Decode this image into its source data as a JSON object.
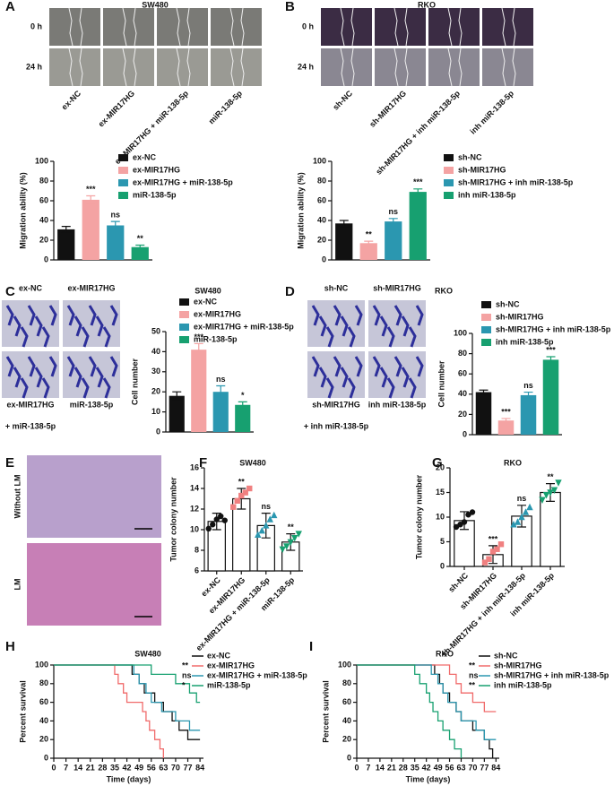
{
  "panel_letters": [
    "A",
    "B",
    "C",
    "D",
    "E",
    "F",
    "G",
    "H",
    "I"
  ],
  "images": {
    "A": {
      "title": "SW480",
      "rows": [
        "0 h",
        "24 h"
      ],
      "columns": [
        "ex-NC",
        "ex-MIR17HG",
        "ex-MIR17HG + miR-138-5p",
        "miR-138-5p"
      ]
    },
    "B": {
      "title": "RKO",
      "rows": [
        "0 h",
        "24 h"
      ],
      "columns": [
        "sh-NC",
        "sh-MIR17HG",
        "sh-MIR17HG + inh miR-138-5p",
        "inh miR-138-5p"
      ]
    },
    "C": {
      "labels": [
        [
          "ex-NC"
        ],
        [
          "ex-MIR17HG"
        ],
        [
          "ex-MIR17HG",
          "+ miR-138-5p"
        ],
        [
          "miR-138-5p"
        ]
      ]
    },
    "D": {
      "labels": [
        [
          "sh-NC"
        ],
        [
          "sh-MIR17HG"
        ],
        [
          "sh-MIR17HG",
          "+ inh miR-138-5p"
        ],
        [
          "inh miR-138-5p"
        ]
      ]
    },
    "E": {
      "rows": [
        "Without LM",
        "LM"
      ]
    }
  },
  "chart_data": [
    {
      "type": "bar",
      "y_label": "Migration ability (%)",
      "categories": [
        "ex-NC",
        "ex-MIR17HG",
        "ex-MIR17HG + miR-138-5p",
        "miR-138-5p"
      ],
      "colors": [
        "#111111",
        "#f4a3a3",
        "#2b97b0",
        "#17a070"
      ],
      "values": [
        31,
        61,
        35,
        13
      ],
      "errors": [
        3,
        4,
        4,
        2
      ],
      "significance": [
        null,
        "***",
        "ns",
        "**"
      ],
      "ylim": [
        0,
        100
      ],
      "yticks": [
        0,
        20,
        40,
        60,
        80,
        100
      ]
    },
    {
      "type": "bar",
      "y_label": "Migration ability (%)",
      "categories": [
        "sh-NC",
        "sh-MIR17HG",
        "sh-MIR17HG + inh miR-138-5p",
        "inh miR-138-5p"
      ],
      "colors": [
        "#111111",
        "#f4a3a3",
        "#2b97b0",
        "#17a070"
      ],
      "values": [
        37,
        17,
        39,
        69
      ],
      "errors": [
        3,
        2,
        3,
        3
      ],
      "significance": [
        null,
        "**",
        "ns",
        "***"
      ],
      "ylim": [
        0,
        100
      ],
      "yticks": [
        0,
        20,
        40,
        60,
        80,
        100
      ]
    },
    {
      "type": "bar",
      "title": "SW480",
      "y_label": "Cell number",
      "categories": [
        "ex-NC",
        "ex-MIR17HG",
        "ex-MIR17HG + miR-138-5p",
        "miR-138-5p"
      ],
      "colors": [
        "#111111",
        "#f4a3a3",
        "#2b97b0",
        "#17a070"
      ],
      "values": [
        18,
        41,
        20,
        13.5
      ],
      "errors": [
        2,
        3,
        3,
        1.5
      ],
      "significance": [
        null,
        "***",
        "ns",
        "*"
      ],
      "ylim": [
        0,
        50
      ],
      "yticks": [
        0,
        10,
        20,
        30,
        40,
        50
      ]
    },
    {
      "type": "bar",
      "title": "RKO",
      "y_label": "Cell number",
      "categories": [
        "sh-NC",
        "sh-MIR17HG",
        "sh-MIR17HG + inh miR-138-5p",
        "inh miR-138-5p"
      ],
      "colors": [
        "#111111",
        "#f4a3a3",
        "#2b97b0",
        "#17a070"
      ],
      "values": [
        42,
        14,
        39,
        74
      ],
      "errors": [
        2,
        2,
        3,
        3
      ],
      "significance": [
        null,
        "***",
        "ns",
        "***"
      ],
      "ylim": [
        0,
        100
      ],
      "yticks": [
        0,
        20,
        40,
        60,
        80,
        100
      ]
    },
    {
      "type": "dotbar",
      "title": "SW480",
      "y_label": "Tumor colony number",
      "categories": [
        "ex-NC",
        "ex-MIR17HG",
        "ex-MIR17HG + miR-138-5p",
        "miR-138-5p"
      ],
      "colors": [
        "#111111",
        "#f08080",
        "#2b97b0",
        "#17a070"
      ],
      "markers": [
        "circle",
        "square",
        "triangle-up",
        "triangle-down"
      ],
      "values": [
        10.8,
        13.0,
        10.4,
        8.8
      ],
      "errors": [
        0.8,
        1.0,
        1.2,
        0.8
      ],
      "significance": [
        null,
        "**",
        "ns",
        "**"
      ],
      "points": [
        [
          10.1,
          10.5,
          11.0,
          11.3,
          10.9
        ],
        [
          12.2,
          12.8,
          13.3,
          13.6,
          14.0
        ],
        [
          9.5,
          9.9,
          10.4,
          11.0,
          11.4
        ],
        [
          8.1,
          8.4,
          8.8,
          9.2,
          9.6
        ]
      ],
      "ylim": [
        6,
        16
      ],
      "yticks": [
        6,
        8,
        10,
        12,
        14,
        16
      ]
    },
    {
      "type": "dotbar",
      "title": "RKO",
      "y_label": "Tumor colony number",
      "categories": [
        "sh-NC",
        "sh-MIR17HG",
        "sh-MIR17HG + inh miR-138-5p",
        "inh miR-138-5p"
      ],
      "colors": [
        "#111111",
        "#f08080",
        "#2b97b0",
        "#17a070"
      ],
      "markers": [
        "circle",
        "square",
        "triangle-up",
        "triangle-down"
      ],
      "values": [
        9.3,
        2.4,
        10.2,
        15.0
      ],
      "errors": [
        1.8,
        1.8,
        2.2,
        1.8
      ],
      "significance": [
        null,
        "***",
        "ns",
        "**"
      ],
      "points": [
        [
          8.0,
          8.5,
          9.0,
          10.5,
          11.0
        ],
        [
          0.8,
          1.5,
          3.0,
          3.5,
          4.5
        ],
        [
          8.5,
          9.0,
          10.0,
          11.0,
          12.0
        ],
        [
          13.5,
          14.5,
          15.0,
          15.5,
          17.0
        ]
      ],
      "ylim": [
        0,
        20
      ],
      "yticks": [
        0,
        5,
        10,
        15,
        20
      ]
    },
    {
      "type": "survival",
      "title": "SW480",
      "x_label": "Time (days)",
      "y_label": "Percent survival",
      "xlim": [
        0,
        86
      ],
      "xticks": [
        0,
        7,
        14,
        21,
        28,
        35,
        42,
        49,
        56,
        63,
        70,
        77,
        84
      ],
      "ylim": [
        0,
        100
      ],
      "yticks": [
        0,
        20,
        40,
        60,
        80,
        100
      ],
      "series": [
        {
          "name": "ex-NC",
          "color": "#111111",
          "significance": null,
          "x": [
            0,
            45,
            49,
            52,
            58,
            63,
            68,
            72,
            77,
            84
          ],
          "values": [
            100,
            90,
            80,
            70,
            60,
            50,
            40,
            30,
            20,
            20
          ]
        },
        {
          "name": "ex-MIR17HG",
          "color": "#f06a6a",
          "significance": "**",
          "x": [
            0,
            35,
            37,
            40,
            42,
            51,
            53,
            55,
            58,
            61,
            63
          ],
          "values": [
            100,
            90,
            80,
            70,
            60,
            50,
            40,
            30,
            20,
            10,
            0
          ]
        },
        {
          "name": "ex-MIR17HG + miR-138-5p",
          "color": "#2b97b0",
          "significance": "ns",
          "x": [
            0,
            46,
            49,
            53,
            56,
            62,
            70,
            78,
            84
          ],
          "values": [
            100,
            90,
            80,
            70,
            60,
            50,
            40,
            30,
            30
          ]
        },
        {
          "name": "miR-138-5p",
          "color": "#17a070",
          "significance": "*",
          "x": [
            0,
            56,
            70,
            78,
            82,
            84
          ],
          "values": [
            100,
            90,
            80,
            70,
            60,
            60
          ]
        }
      ]
    },
    {
      "type": "survival",
      "title": "RKO",
      "x_label": "Time (days)",
      "y_label": "Percent survival",
      "xlim": [
        0,
        86
      ],
      "xticks": [
        0,
        7,
        14,
        21,
        28,
        35,
        42,
        49,
        56,
        63,
        70,
        77,
        84
      ],
      "ylim": [
        0,
        100
      ],
      "yticks": [
        0,
        20,
        40,
        60,
        80,
        100
      ],
      "series": [
        {
          "name": "sh-NC",
          "color": "#111111",
          "significance": null,
          "x": [
            0,
            47,
            50,
            52,
            56,
            60,
            63,
            70,
            77,
            80,
            82
          ],
          "values": [
            100,
            90,
            80,
            70,
            60,
            50,
            40,
            30,
            20,
            10,
            0
          ]
        },
        {
          "name": "sh-MIR17HG",
          "color": "#f06a6a",
          "significance": "**",
          "x": [
            0,
            56,
            60,
            63,
            70,
            77,
            84
          ],
          "values": [
            100,
            90,
            80,
            70,
            60,
            50,
            50
          ]
        },
        {
          "name": "sh-MIR17HG + inh miR-138-5p",
          "color": "#2b97b0",
          "significance": "ns",
          "x": [
            0,
            45,
            49,
            52,
            55,
            60,
            63,
            72,
            77,
            84
          ],
          "values": [
            100,
            90,
            80,
            70,
            60,
            50,
            40,
            30,
            20,
            20
          ]
        },
        {
          "name": "inh miR-138-5p",
          "color": "#17a070",
          "significance": "**",
          "x": [
            0,
            35,
            38,
            42,
            44,
            46,
            49,
            52,
            56,
            59,
            63
          ],
          "values": [
            100,
            90,
            80,
            70,
            60,
            50,
            40,
            30,
            20,
            10,
            0
          ]
        }
      ]
    }
  ]
}
